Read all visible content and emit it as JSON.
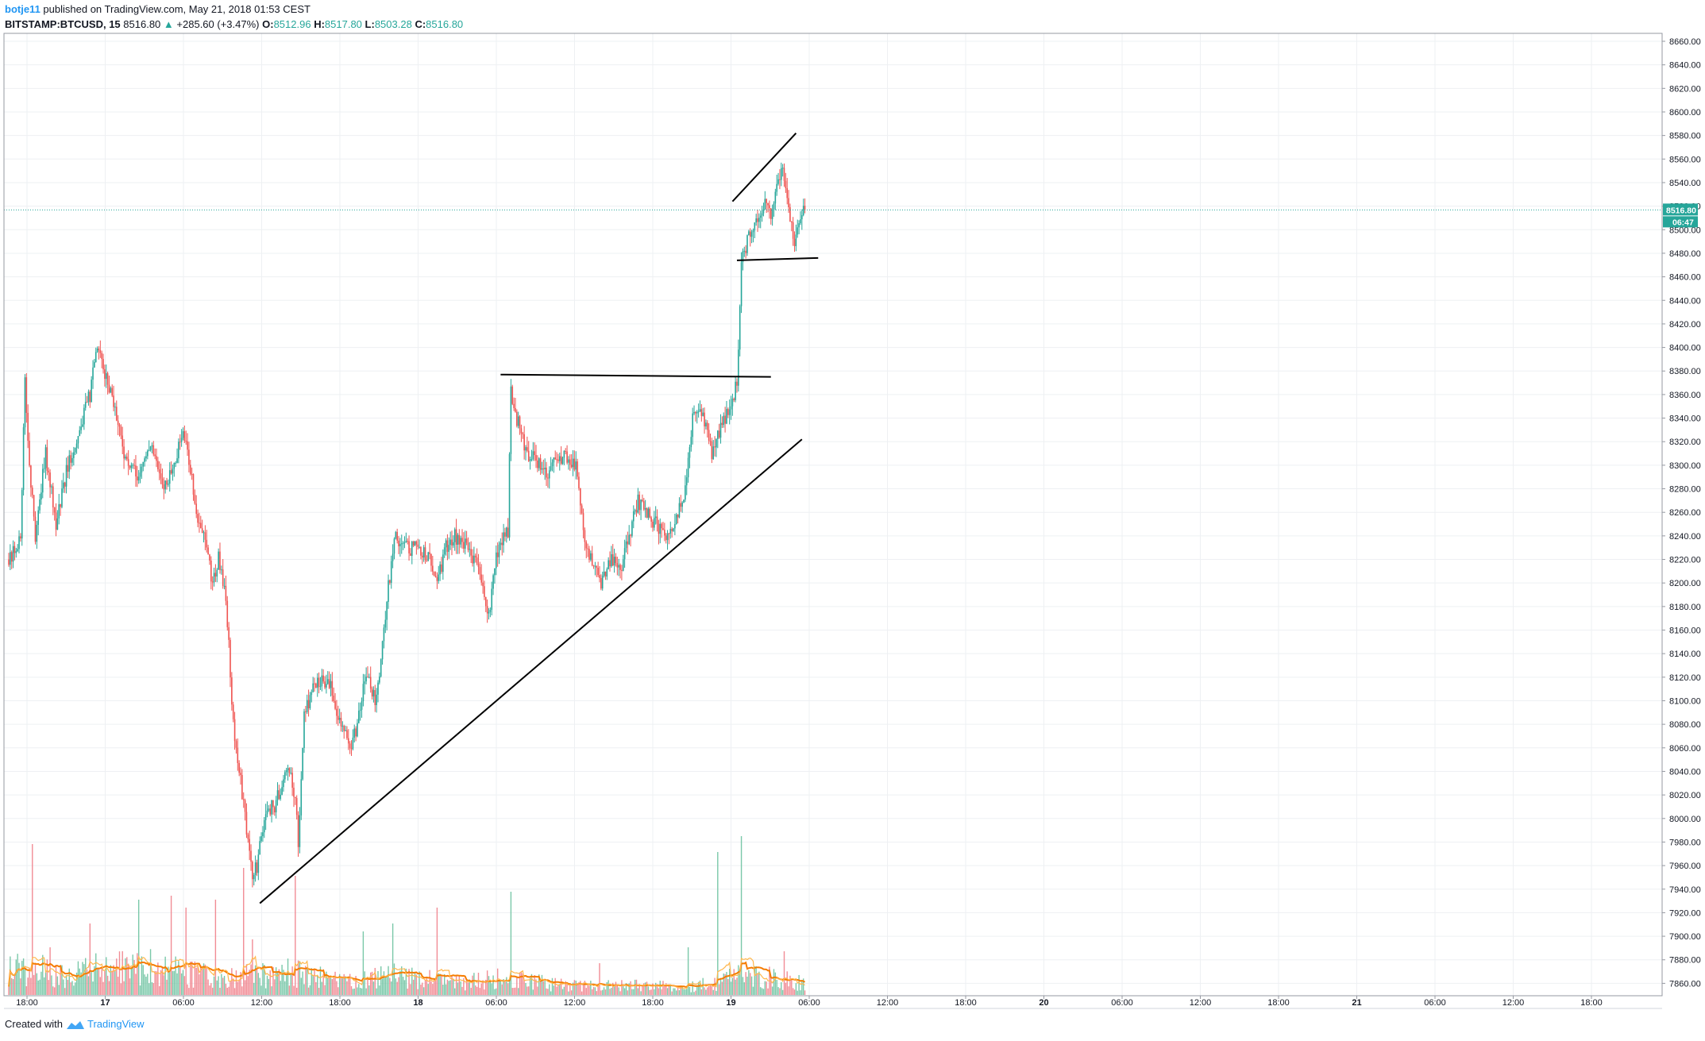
{
  "header": {
    "author": "botje11",
    "published_text": "published on TradingView.com, May 21, 2018 01:53 CEST",
    "symbol": "BITSTAMP:BTCUSD, 15",
    "last": "8516.80",
    "change": "+285.60 (+3.47%)",
    "o_label": "O:",
    "o_value": "8512.96",
    "h_label": "H:",
    "h_value": "8517.80",
    "l_label": "L:",
    "l_value": "8503.28",
    "c_label": "C:",
    "c_value": "8516.80"
  },
  "price_badge": {
    "price": "8516.80",
    "countdown": "06:47"
  },
  "footer": {
    "created_with": "Created with",
    "brand": "TradingView"
  },
  "colors": {
    "up": "#26a69a",
    "down": "#ef5350",
    "up_volume": "#6cc2a0",
    "down_volume": "#ef7f8a",
    "grid": "#eef0f3",
    "ma": "#f57c00",
    "ma2": "#ffb74d",
    "trendline": "#000000",
    "price_line": "#26a69a"
  },
  "chart_data": {
    "type": "candlestick",
    "symbol": "BITSTAMP:BTCUSD",
    "interval": "15",
    "y_axis": {
      "ticks": [
        "8660.00",
        "8640.00",
        "8620.00",
        "8600.00",
        "8580.00",
        "8560.00",
        "8540.00",
        "8520.00",
        "8500.00",
        "8480.00",
        "8460.00",
        "8440.00",
        "8420.00",
        "8400.00",
        "8380.00",
        "8360.00",
        "8340.00",
        "8320.00",
        "8300.00",
        "8280.00",
        "8260.00",
        "8240.00",
        "8220.00",
        "8200.00",
        "8180.00",
        "8160.00",
        "8140.00",
        "8120.00",
        "8100.00",
        "8080.00",
        "8060.00",
        "8040.00",
        "8020.00",
        "8000.00",
        "7980.00",
        "7960.00",
        "7940.00",
        "7920.00",
        "7900.00",
        "7880.00",
        "7860.00"
      ],
      "range": [
        7850,
        8665
      ]
    },
    "x_axis": {
      "ticks": [
        "18:00",
        "17",
        "06:00",
        "12:00",
        "18:00",
        "18",
        "06:00",
        "12:00",
        "18:00",
        "19",
        "06:00",
        "12:00",
        "18:00",
        "20",
        "06:00",
        "12:00",
        "18:00",
        "21",
        "06:00",
        "12:00",
        "18:00"
      ],
      "bold_ticks": [
        "17",
        "18",
        "19",
        "20",
        "21"
      ]
    },
    "price_path": [
      [
        0,
        8220
      ],
      [
        8,
        8240
      ],
      [
        11,
        8370
      ],
      [
        14,
        8300
      ],
      [
        18,
        8240
      ],
      [
        25,
        8310
      ],
      [
        32,
        8250
      ],
      [
        40,
        8300
      ],
      [
        48,
        8330
      ],
      [
        55,
        8360
      ],
      [
        60,
        8400
      ],
      [
        64,
        8380
      ],
      [
        70,
        8360
      ],
      [
        75,
        8330
      ],
      [
        80,
        8300
      ],
      [
        88,
        8290
      ],
      [
        96,
        8320
      ],
      [
        100,
        8300
      ],
      [
        104,
        8280
      ],
      [
        112,
        8300
      ],
      [
        118,
        8330
      ],
      [
        124,
        8290
      ],
      [
        128,
        8250
      ],
      [
        132,
        8240
      ],
      [
        138,
        8200
      ],
      [
        142,
        8220
      ],
      [
        147,
        8190
      ],
      [
        152,
        8080
      ],
      [
        155,
        8050
      ],
      [
        160,
        8000
      ],
      [
        165,
        7950
      ],
      [
        168,
        7960
      ],
      [
        172,
        7990
      ],
      [
        175,
        8010
      ],
      [
        180,
        8010
      ],
      [
        185,
        8030
      ],
      [
        190,
        8040
      ],
      [
        194,
        8020
      ],
      [
        196,
        7975
      ],
      [
        200,
        8090
      ],
      [
        206,
        8110
      ],
      [
        212,
        8120
      ],
      [
        218,
        8110
      ],
      [
        223,
        8090
      ],
      [
        228,
        8070
      ],
      [
        232,
        8060
      ],
      [
        236,
        8080
      ],
      [
        240,
        8110
      ],
      [
        244,
        8120
      ],
      [
        248,
        8100
      ],
      [
        252,
        8130
      ],
      [
        256,
        8190
      ],
      [
        262,
        8240
      ],
      [
        270,
        8230
      ],
      [
        278,
        8230
      ],
      [
        285,
        8220
      ],
      [
        290,
        8200
      ],
      [
        296,
        8230
      ],
      [
        302,
        8240
      ],
      [
        310,
        8230
      ],
      [
        316,
        8220
      ],
      [
        320,
        8200
      ],
      [
        325,
        8170
      ],
      [
        330,
        8220
      ],
      [
        335,
        8240
      ],
      [
        338,
        8245
      ],
      [
        340,
        8360
      ],
      [
        344,
        8340
      ],
      [
        350,
        8310
      ],
      [
        356,
        8310
      ],
      [
        362,
        8290
      ],
      [
        368,
        8300
      ],
      [
        376,
        8310
      ],
      [
        384,
        8300
      ],
      [
        390,
        8240
      ],
      [
        396,
        8210
      ],
      [
        402,
        8200
      ],
      [
        408,
        8220
      ],
      [
        414,
        8210
      ],
      [
        420,
        8240
      ],
      [
        426,
        8270
      ],
      [
        432,
        8260
      ],
      [
        438,
        8250
      ],
      [
        444,
        8240
      ],
      [
        450,
        8250
      ],
      [
        456,
        8270
      ],
      [
        460,
        8300
      ],
      [
        464,
        8350
      ],
      [
        470,
        8340
      ],
      [
        476,
        8310
      ],
      [
        482,
        8330
      ],
      [
        488,
        8350
      ],
      [
        493,
        8370
      ],
      [
        496,
        8470
      ],
      [
        500,
        8490
      ],
      [
        506,
        8510
      ],
      [
        512,
        8520
      ],
      [
        516,
        8510
      ],
      [
        520,
        8540
      ],
      [
        524,
        8550
      ],
      [
        528,
        8520
      ],
      [
        532,
        8490
      ],
      [
        535,
        8510
      ],
      [
        537,
        8517
      ]
    ],
    "volume_path": [
      [
        0,
        40
      ],
      [
        16,
        45
      ],
      [
        30,
        30
      ],
      [
        60,
        40
      ],
      [
        100,
        45
      ],
      [
        130,
        30
      ],
      [
        150,
        25
      ],
      [
        164,
        30
      ],
      [
        190,
        35
      ],
      [
        230,
        20
      ],
      [
        260,
        30
      ],
      [
        300,
        20
      ],
      [
        330,
        25
      ],
      [
        380,
        15
      ],
      [
        420,
        15
      ],
      [
        460,
        12
      ],
      [
        480,
        20
      ],
      [
        496,
        35
      ],
      [
        510,
        28
      ],
      [
        537,
        20
      ]
    ],
    "volume_spikes": [
      [
        16,
        190
      ],
      [
        28,
        60
      ],
      [
        55,
        90
      ],
      [
        88,
        120
      ],
      [
        110,
        125
      ],
      [
        120,
        110
      ],
      [
        140,
        120
      ],
      [
        159,
        160
      ],
      [
        165,
        70
      ],
      [
        172,
        40
      ],
      [
        194,
        150
      ],
      [
        240,
        80
      ],
      [
        260,
        90
      ],
      [
        290,
        110
      ],
      [
        340,
        130
      ],
      [
        400,
        40
      ],
      [
        460,
        60
      ],
      [
        480,
        180
      ],
      [
        496,
        200
      ],
      [
        525,
        55
      ]
    ],
    "trendlines": [
      {
        "from": [
          170,
          7928
        ],
        "to": [
          537,
          8322
        ]
      },
      {
        "from": [
          333,
          8377
        ],
        "to": [
          516,
          8375
        ]
      },
      {
        "from": [
          490,
          8524
        ],
        "to": [
          533,
          8582
        ]
      },
      {
        "from": [
          493,
          8474
        ],
        "to": [
          548,
          8476
        ]
      }
    ],
    "last_price": 8516.8
  }
}
